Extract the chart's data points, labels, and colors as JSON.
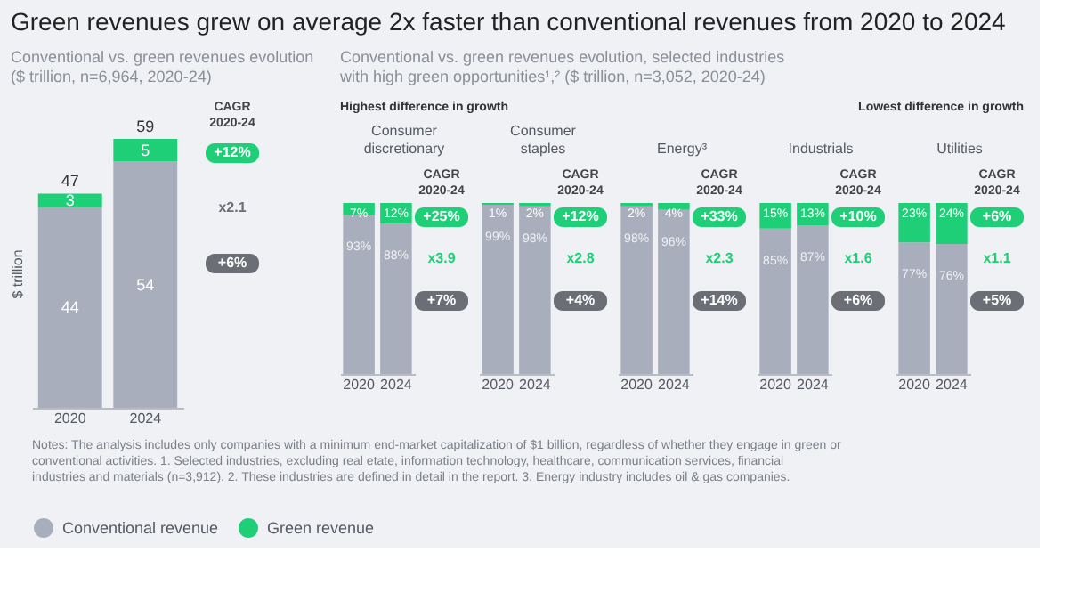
{
  "chart_data": [
    {
      "type": "bar",
      "title": "Green revenues grew on average 2x faster than conventional revenues from 2020 to 2024",
      "subtitle": "Conventional vs. green revenues evolution\n($ trillion, n=6,964, 2020-24)",
      "ylabel": "$ trillion",
      "categories": [
        "2020",
        "2024"
      ],
      "stacked": true,
      "data_labels": true,
      "totals": [
        "47",
        "59"
      ],
      "tick_labels": "x",
      "grid": false,
      "legend": "bottom",
      "series": [
        {
          "name": "Conventional revenue",
          "color": "#a9aebd",
          "values": [
            44,
            54
          ]
        },
        {
          "name": "Green revenue",
          "color": "#1fcf78",
          "values": [
            3,
            5
          ]
        }
      ],
      "annotations": [
        "CAGR 2020-24",
        "+12%",
        "x2.1",
        "+6%",
        "Notes: The analysis includes only companies with a minimum end-market capitalization of $1 billion, regardless of whether they engage in green or conventional activities. 1. Selected industries, excluding real etate, information technology, healthcare, communication services, financial industries and materials (n=3,912). 2. These industries are defined in detail in the report. 3. Energy industry includes oil & gas companies."
      ]
    },
    {
      "type": "bar",
      "title": "Consumer discretionary",
      "subtitle": "Conventional vs. green revenues evolution, selected industries\nwith high green opportunities¹,² ($ trillion, n=3,052, 2020-24)",
      "categories": [
        "2020",
        "2024"
      ],
      "stacked": true,
      "tick_labels": "x",
      "grid": false,
      "legend": "bottom",
      "series": [
        {
          "name": "Conventional revenue",
          "color": "#a9aebd",
          "values": [
            93,
            88
          ],
          "value_labels": [
            "93%",
            "88%"
          ]
        },
        {
          "name": "Green revenue",
          "color": "#1fcf78",
          "values": [
            7,
            12
          ],
          "value_labels": [
            "7%",
            "12%"
          ]
        }
      ],
      "annotations": [
        "CAGR 2020-24",
        "+25%",
        "x3.9",
        "+7%",
        "Highest difference in growth"
      ]
    },
    {
      "type": "bar",
      "title": "Consumer staples",
      "categories": [
        "2020",
        "2024"
      ],
      "stacked": true,
      "tick_labels": "x",
      "grid": false,
      "legend": "bottom",
      "series": [
        {
          "name": "Conventional revenue",
          "color": "#a9aebd",
          "values": [
            99,
            98
          ],
          "value_labels": [
            "99%",
            "98%"
          ]
        },
        {
          "name": "Green revenue",
          "color": "#1fcf78",
          "values": [
            1,
            2
          ],
          "value_labels": [
            "1%",
            "2%"
          ]
        }
      ],
      "annotations": [
        "CAGR 2020-24",
        "+12%",
        "x2.8",
        "+4%"
      ]
    },
    {
      "type": "bar",
      "title": "Energy³",
      "categories": [
        "2020",
        "2024"
      ],
      "stacked": true,
      "tick_labels": "x",
      "grid": false,
      "legend": "bottom",
      "series": [
        {
          "name": "Conventional revenue",
          "color": "#a9aebd",
          "values": [
            98,
            96
          ],
          "value_labels": [
            "98%",
            "96%"
          ]
        },
        {
          "name": "Green revenue",
          "color": "#1fcf78",
          "values": [
            2,
            4
          ],
          "value_labels": [
            "2%",
            "4%"
          ]
        }
      ],
      "annotations": [
        "CAGR 2020-24",
        "+33%",
        "x2.3",
        "+14%"
      ]
    },
    {
      "type": "bar",
      "title": "Industrials",
      "categories": [
        "2020",
        "2024"
      ],
      "stacked": true,
      "tick_labels": "x",
      "grid": false,
      "legend": "bottom",
      "series": [
        {
          "name": "Conventional revenue",
          "color": "#a9aebd",
          "values": [
            85,
            87
          ],
          "value_labels": [
            "85%",
            "87%"
          ]
        },
        {
          "name": "Green revenue",
          "color": "#1fcf78",
          "values": [
            15,
            13
          ],
          "value_labels": [
            "15%",
            "13%"
          ]
        }
      ],
      "annotations": [
        "CAGR 2020-24",
        "+10%",
        "x1.6",
        "+6%"
      ]
    },
    {
      "type": "bar",
      "title": "Utilities",
      "categories": [
        "2020",
        "2024"
      ],
      "stacked": true,
      "tick_labels": "x",
      "grid": false,
      "legend": "bottom",
      "series": [
        {
          "name": "Conventional revenue",
          "color": "#a9aebd",
          "values": [
            77,
            76
          ],
          "value_labels": [
            "77%",
            "76%"
          ]
        },
        {
          "name": "Green revenue",
          "color": "#1fcf78",
          "values": [
            23,
            24
          ],
          "value_labels": [
            "23%",
            "24%"
          ]
        }
      ],
      "annotations": [
        "CAGR 2020-24",
        "+6%",
        "x1.1",
        "+5%",
        "Lowest difference in growth"
      ]
    }
  ]
}
